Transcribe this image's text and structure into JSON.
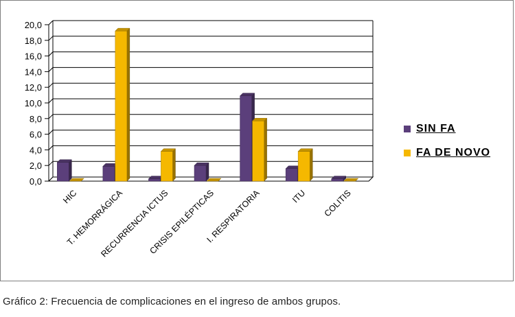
{
  "chart_data": {
    "type": "bar",
    "categories": [
      "HIC",
      "T. HEMORRÁGICA",
      "RECURRENCIA ICTUS",
      "CRISIS EPILÉPTICAS",
      "I. RESPIRATORIA",
      "ITU",
      "COLITIS"
    ],
    "series": [
      {
        "name": "SIN FA",
        "values": [
          2.4,
          1.9,
          0.3,
          2.0,
          10.9,
          1.6,
          0.3
        ],
        "color": "#5b3f7b"
      },
      {
        "name": "FA DE NOVO",
        "values": [
          0,
          19.2,
          3.8,
          0,
          7.7,
          3.8,
          0
        ],
        "color": "#f5b800"
      }
    ],
    "ylim": [
      0,
      20
    ],
    "yticks": [
      "0,0",
      "2,0",
      "4,0",
      "6,0",
      "8,0",
      "10,0",
      "12,0",
      "14,0",
      "16,0",
      "18,0",
      "20,0"
    ],
    "grid": true,
    "legend_position": "right",
    "style": "3d-clustered-column"
  },
  "caption": "Gráfico 2: Frecuencia de complicaciones en el ingreso de ambos grupos."
}
